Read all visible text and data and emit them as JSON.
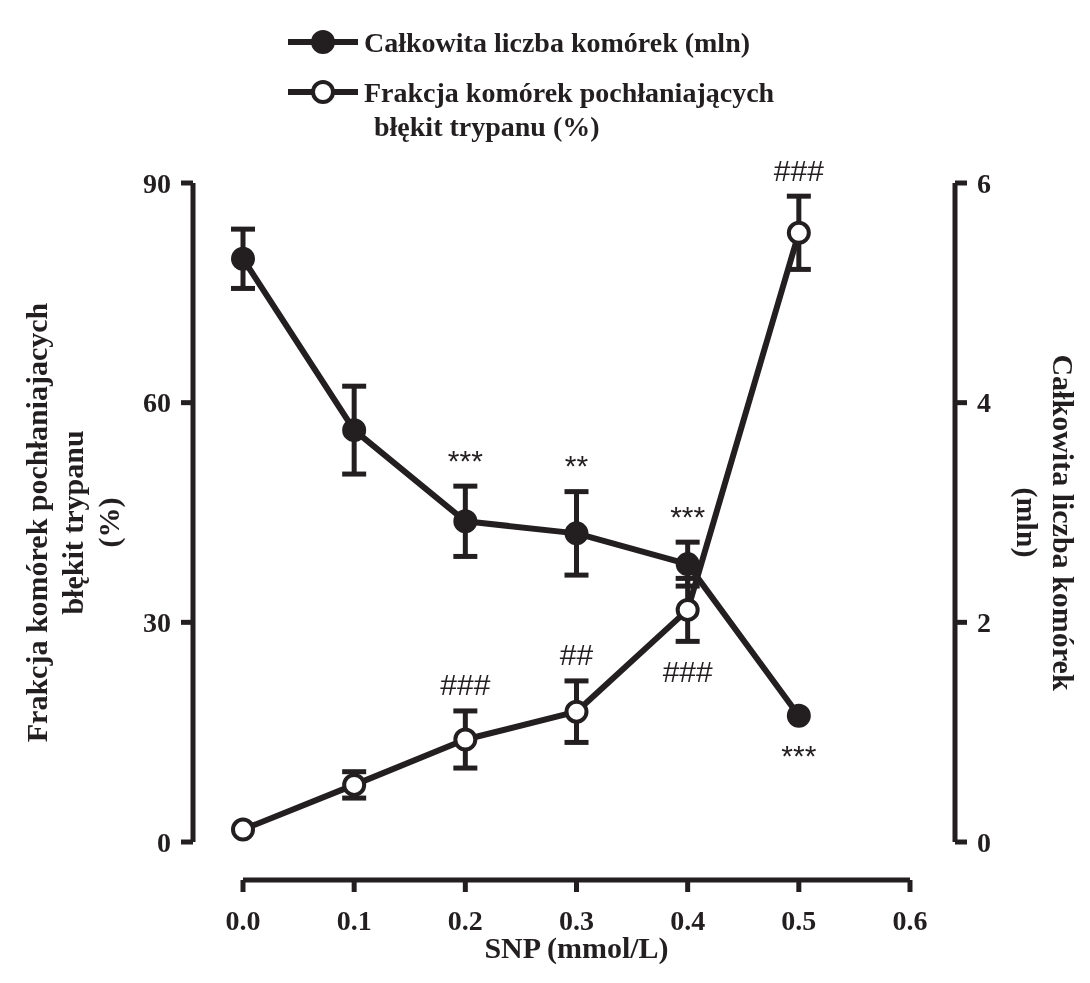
{
  "chart_data": {
    "type": "line",
    "xlabel": "SNP (mmol/L)",
    "ylabel": "Frakcja komórek pochłaniajacych\nbłękit trypanu\n(%)",
    "y2label": "Całkowita liczba komórek\n(mln)",
    "x": [
      0,
      0.1,
      0.2,
      0.3,
      0.4,
      0.5
    ],
    "xlim": [
      0,
      0.6
    ],
    "xticks": [
      {
        "value": 0,
        "label": "0.0"
      },
      0.1,
      0.2,
      0.3,
      0.4,
      0.5,
      0.6
    ],
    "ylim": [
      0,
      90
    ],
    "yticks": [
      0,
      30,
      60,
      90
    ],
    "y2lim": [
      0,
      6
    ],
    "y2ticks": [
      0,
      2,
      4,
      6
    ],
    "line_style": "solid",
    "legend": "top",
    "grid": false,
    "series": [
      {
        "name": "Całkowita liczba komórek (mln)",
        "color": "#231f20",
        "marker": "circle",
        "axis": "y2",
        "values": [
          5.31,
          3.75,
          2.92,
          2.81,
          2.53,
          1.15
        ],
        "errors": [
          0.27,
          0.4,
          0.32,
          0.38,
          0.2,
          null
        ]
      },
      {
        "name": "Frakcja komórek pochłaniających\nbłękit trypanu (%)",
        "color": "#231f20",
        "marker": "circle-open",
        "axis": "y",
        "values": [
          1.7,
          7.8,
          14.0,
          17.8,
          31.7,
          83.2
        ],
        "errors": [
          null,
          1.8,
          3.9,
          4.2,
          4.3,
          5.0
        ]
      }
    ],
    "annotations": [
      {
        "text": "***",
        "x": 0.2,
        "y": 43.8
      },
      {
        "text": "**",
        "x": 0.3,
        "y": 42.15
      },
      {
        "text": "***",
        "x": 0.4,
        "y": 37.95
      },
      {
        "text": "***",
        "x": 0.5,
        "y": 17.25
      },
      {
        "text": "###",
        "x": 0.2,
        "y": 14.0
      },
      {
        "text": "##",
        "x": 0.3,
        "y": 17.8
      },
      {
        "text": "###",
        "x": 0.4,
        "y": 31.7
      },
      {
        "text": "###",
        "x": 0.5,
        "y": 83.2
      }
    ]
  }
}
